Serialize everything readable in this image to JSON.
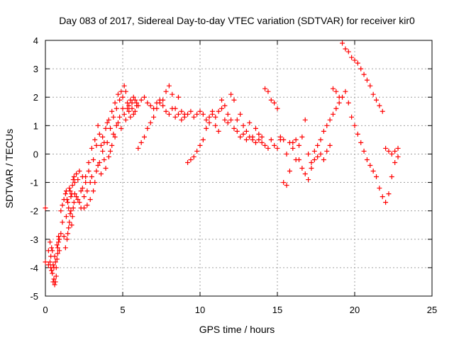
{
  "chart_data": {
    "type": "scatter",
    "title": "Day 083 of 2017, Sidereal Day-to-day VTEC variation (SDTVAR) for receiver kir0",
    "xlabel": "GPS time / hours",
    "ylabel": "SDTVAR / TECUs",
    "xlim": [
      0,
      25
    ],
    "ylim": [
      -5,
      4
    ],
    "xticks": [
      "0",
      "5",
      "10",
      "15",
      "20",
      "25"
    ],
    "yticks": [
      "-5",
      "-4",
      "-3",
      "-2",
      "-1",
      "0",
      "1",
      "2",
      "3",
      "4"
    ],
    "grid": true,
    "marker": "plus",
    "color": "#ff0000",
    "series": [
      {
        "x": [
          0.0,
          0.2,
          0.3,
          0.35,
          0.4,
          0.45,
          0.5,
          0.55,
          0.6,
          0.65,
          0.7,
          0.75,
          0.8,
          0.85,
          0.9,
          1.0,
          1.1,
          1.2,
          1.3,
          1.35,
          1.4,
          1.45,
          1.5,
          1.55,
          1.6,
          1.65,
          1.7,
          1.75,
          1.8,
          1.85,
          1.9,
          2.0,
          2.1,
          2.2,
          2.3,
          2.4,
          2.5,
          2.6,
          2.7,
          2.8,
          2.9,
          3.0,
          3.1,
          3.2,
          3.3,
          3.4,
          3.5,
          3.6,
          3.7,
          3.8,
          3.9,
          4.0,
          4.1,
          4.2,
          4.3,
          4.4,
          4.5,
          4.6,
          4.7,
          4.8,
          4.9,
          5.0,
          5.1,
          5.2,
          5.3,
          5.4,
          5.5,
          5.6,
          5.7,
          5.8,
          5.9,
          6.0,
          6.2,
          6.4,
          6.6,
          6.8,
          7.0,
          7.2,
          7.4,
          7.6,
          7.8,
          8.0,
          8.2,
          8.4,
          8.6,
          8.8,
          9.0,
          9.2,
          9.4,
          9.6,
          9.8,
          10.0,
          10.2,
          10.4,
          10.6,
          10.8,
          11.0,
          11.2,
          11.4,
          11.6,
          11.8,
          12.0,
          12.2,
          12.4,
          12.6,
          12.8,
          13.0,
          13.2,
          13.4,
          13.6,
          13.8,
          14.0,
          14.2,
          14.4,
          14.6,
          14.8,
          15.0,
          15.2,
          15.4,
          15.6,
          15.8,
          16.0,
          16.2,
          16.4,
          16.6,
          16.8,
          17.0,
          17.2,
          17.4,
          17.6,
          17.8,
          18.0,
          18.2,
          18.4,
          18.6,
          18.8,
          19.0,
          19.2,
          19.4,
          19.6,
          19.8,
          20.0,
          20.2,
          20.4,
          20.6,
          20.8,
          21.0,
          21.2,
          21.4,
          21.6,
          21.8,
          22.0,
          22.2,
          22.4,
          22.6,
          22.8
        ],
        "y": [
          -1.9,
          -3.4,
          -3.8,
          -4.0,
          -3.3,
          -4.2,
          -3.9,
          -4.4,
          -3.6,
          -4.5,
          -4.0,
          -3.2,
          -3.5,
          -3.1,
          -3.0,
          -2.8,
          -2.4,
          -1.6,
          -3.3,
          -1.3,
          -3.0,
          -1.7,
          -2.6,
          -1.2,
          -2.1,
          -1.5,
          -2.5,
          -1.1,
          -1.9,
          -0.8,
          -1.4,
          -0.7,
          -1.6,
          -0.6,
          -1.9,
          -1.2,
          -1.5,
          -0.8,
          -1.8,
          -0.3,
          -1.0,
          0.2,
          -1.3,
          0.5,
          -0.6,
          1.0,
          -0.3,
          0.3,
          0.6,
          -0.2,
          0.9,
          0.4,
          1.2,
          0.1,
          1.5,
          0.7,
          1.8,
          1.0,
          2.1,
          1.3,
          2.2,
          1.6,
          2.4,
          1.2,
          1.8,
          1.5,
          1.9,
          1.6,
          1.4,
          1.9,
          1.7,
          0.2,
          0.4,
          0.6,
          0.9,
          1.1,
          1.3,
          1.6,
          1.8,
          1.9,
          2.2,
          2.4,
          2.1,
          1.6,
          1.4,
          1.5,
          1.3,
          1.4,
          1.5,
          1.3,
          1.4,
          1.5,
          1.4,
          1.2,
          1.3,
          1.4,
          1.3,
          1.5,
          1.6,
          1.2,
          1.4,
          1.2,
          0.9,
          0.8,
          0.6,
          0.7,
          0.5,
          0.6,
          0.5,
          0.4,
          0.5,
          0.6,
          0.3,
          0.2,
          0.5,
          0.3,
          0.2,
          0.5,
          -1.0,
          -1.1,
          -0.6,
          0.4,
          0.5,
          -0.2,
          -0.5,
          -0.7,
          -0.9,
          -0.5,
          -0.2,
          0.3,
          0.5,
          0.8,
          1.0,
          1.2,
          1.4,
          1.6,
          1.8,
          2.0,
          2.2,
          1.8,
          1.3,
          1.0,
          0.7,
          0.4,
          0.1,
          -0.2,
          -0.4,
          -0.6,
          -0.8,
          -1.2,
          -1.5,
          -1.7,
          -1.4,
          -0.8,
          -0.3,
          0.2
        ]
      },
      {
        "x": [
          0.0,
          0.2,
          0.3,
          0.35,
          0.4,
          0.45,
          0.5,
          0.55,
          0.6,
          0.65,
          0.7,
          0.75,
          0.8,
          0.85,
          0.9,
          1.0,
          1.1,
          1.2,
          1.3,
          1.35,
          1.4,
          1.45,
          1.5,
          1.55,
          1.6,
          1.65,
          1.7,
          1.75,
          1.8,
          1.85,
          1.9,
          2.0,
          2.1,
          2.2,
          2.3,
          2.4,
          2.5,
          2.6,
          2.7,
          2.8,
          2.9,
          3.0,
          3.1,
          3.2,
          3.3,
          3.4,
          3.5,
          3.6,
          3.7,
          3.8,
          3.9,
          4.0,
          4.1,
          4.2,
          4.3,
          4.4,
          4.5,
          4.6,
          4.7,
          4.8,
          4.9,
          5.0,
          5.1,
          5.2,
          5.3,
          5.4,
          5.5,
          5.6,
          5.7,
          5.8,
          5.9,
          6.0,
          6.2,
          6.4,
          6.6,
          6.8,
          7.0,
          7.2,
          7.4,
          7.6,
          7.8,
          8.0,
          8.2,
          8.4,
          8.6,
          8.8,
          9.0,
          9.2,
          9.4,
          9.6,
          9.8,
          10.0,
          10.2,
          10.4,
          10.6,
          10.8,
          11.0,
          11.2,
          11.4,
          11.6,
          11.8,
          12.0,
          12.2,
          12.4,
          12.6,
          12.8,
          13.0,
          13.2,
          13.4,
          13.6,
          13.8,
          14.0,
          14.2,
          14.4,
          14.6,
          14.8,
          15.0,
          15.2,
          15.4,
          15.6,
          15.8,
          16.0,
          16.2,
          16.4,
          16.6,
          16.8,
          17.0,
          17.2,
          17.4,
          17.6,
          17.8,
          18.0,
          18.2,
          18.4,
          18.6,
          18.8,
          19.0,
          19.2,
          19.4,
          19.6,
          19.8,
          20.0,
          20.2,
          20.4,
          20.6,
          20.8,
          21.0,
          21.2,
          21.4,
          21.6,
          21.8,
          22.0,
          22.2,
          22.4,
          22.6,
          22.8
        ],
        "y": [
          -3.8,
          -3.9,
          -3.1,
          -3.6,
          -4.1,
          -3.4,
          -4.5,
          -4.0,
          -4.6,
          -3.8,
          -4.3,
          -3.7,
          -3.3,
          -2.9,
          -3.4,
          -2.0,
          -1.8,
          -2.9,
          -1.4,
          -2.2,
          -1.6,
          -2.8,
          -1.9,
          -2.4,
          -1.3,
          -2.0,
          -1.4,
          -2.2,
          -0.9,
          -1.7,
          -1.0,
          -1.5,
          -0.9,
          -1.7,
          -1.3,
          -0.8,
          -1.9,
          -1.0,
          -1.3,
          -0.6,
          -1.6,
          -0.8,
          -0.2,
          -1.0,
          0.3,
          -0.4,
          0.7,
          -0.7,
          0.1,
          0.4,
          -0.5,
          1.1,
          -0.1,
          0.9,
          0.3,
          1.3,
          0.6,
          1.6,
          1.1,
          1.9,
          0.9,
          2.0,
          1.4,
          2.2,
          1.6,
          1.7,
          1.3,
          1.8,
          2.0,
          1.5,
          1.8,
          1.7,
          1.9,
          2.0,
          1.8,
          1.7,
          1.6,
          1.8,
          1.9,
          1.7,
          1.5,
          1.4,
          1.6,
          1.3,
          2.0,
          1.2,
          1.4,
          -0.3,
          -0.2,
          -0.1,
          0.1,
          0.3,
          0.5,
          0.9,
          1.1,
          1.5,
          1.0,
          0.8,
          1.9,
          1.7,
          1.1,
          2.1,
          1.9,
          1.2,
          1.4,
          1.0,
          0.8,
          1.1,
          0.6,
          0.9,
          0.7,
          0.4,
          2.3,
          2.2,
          1.9,
          1.8,
          1.6,
          0.6,
          0.5,
          0.0,
          0.4,
          0.2,
          -0.2,
          0.3,
          0.6,
          1.2,
          0.0,
          -0.3,
          0.1,
          -0.1,
          0.0,
          -0.2,
          0.1,
          0.3,
          2.3,
          2.2,
          2.0,
          3.9,
          3.7,
          3.6,
          3.4,
          3.3,
          3.2,
          3.0,
          2.8,
          2.6,
          2.4,
          2.1,
          1.9,
          1.7,
          1.5,
          0.2,
          0.1,
          0.0,
          0.1,
          -0.1
        ]
      }
    ]
  }
}
